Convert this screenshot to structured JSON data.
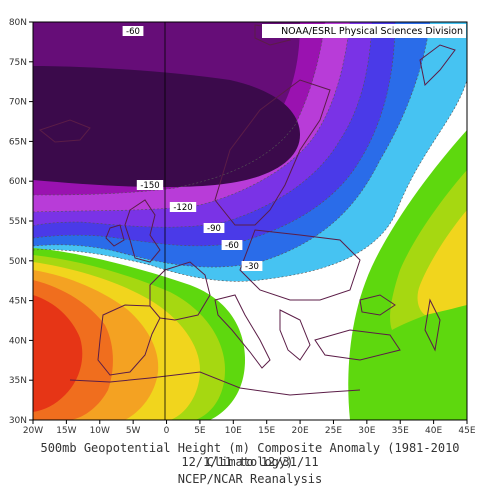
{
  "credit": "NOAA/ESRL Physical Sciences Division",
  "title_line1": "500mb Geopotential Height (m) Composite Anomaly (1981-2010 Climatology)",
  "title_line2": "12/1/11   to 12/31/11",
  "title_line3": "NCEP/NCAR Reanalysis",
  "lon_labels": [
    "20W",
    "15W",
    "10W",
    "5W",
    "0",
    "5E",
    "10E",
    "15E",
    "20E",
    "25E",
    "30E",
    "35E",
    "40E",
    "45E"
  ],
  "lat_labels": [
    "30N",
    "35N",
    "40N",
    "45N",
    "50N",
    "55N",
    "60N",
    "65N",
    "70N",
    "75N",
    "80N"
  ],
  "contour_labels": [
    "-60",
    "-150",
    "-120",
    "-90",
    "-60",
    "-30"
  ],
  "colors": {
    "neg_darkest": "#3b0a4b",
    "neg_dark": "#660d78",
    "neg_purple": "#9a12b0",
    "neg_magenta": "#b83cd8",
    "neg_violet": "#7a33e6",
    "neg_blue": "#4a3ae8",
    "neg_mid": "#2a6ce9",
    "neg_light": "#3aa3ee",
    "neg_cyan": "#46c3f2",
    "neutral": "#ffffff",
    "pos_green": "#5ed80e",
    "pos_lime": "#a6d811",
    "pos_yellow": "#f1d51d",
    "pos_orange": "#f4a222",
    "pos_dorange": "#f06e1e",
    "pos_red": "#e63516",
    "coast": "#5b1d47"
  }
}
